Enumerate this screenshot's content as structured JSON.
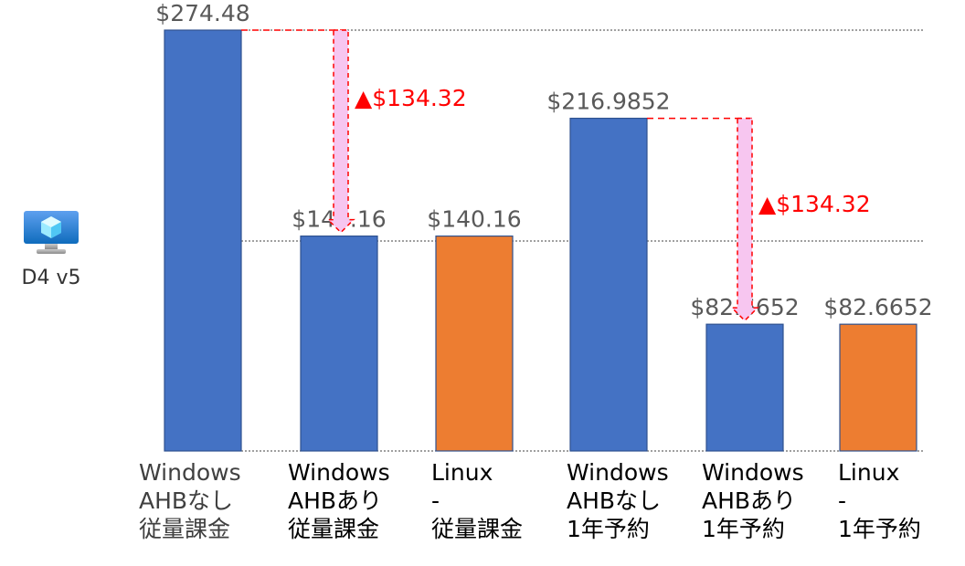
{
  "vm": {
    "label": "D4 v5",
    "icon": "virtual-machine-icon"
  },
  "chart_data": {
    "type": "bar",
    "categories": [
      [
        "Windows",
        "AHBなし",
        "従量課金"
      ],
      [
        "Windows",
        "AHBあり",
        "従量課金"
      ],
      [
        "Linux",
        "-",
        "従量課金"
      ],
      [
        "Windows",
        "AHBなし",
        "1年予約"
      ],
      [
        "Windows",
        "AHBあり",
        "1年予約"
      ],
      [
        "Linux",
        "-",
        "1年予約"
      ]
    ],
    "values": [
      274.48,
      140.16,
      140.16,
      216.9852,
      82.6652,
      82.6652
    ],
    "value_labels": [
      "$274.48",
      "$140.16",
      "$140.16",
      "$216.9852",
      "$82.6652",
      "$82.6652"
    ],
    "bar_colors": [
      "#4472C4",
      "#4472C4",
      "#ED7D31",
      "#4472C4",
      "#4472C4",
      "#ED7D31"
    ],
    "ylim": [
      0,
      274.48
    ],
    "grid": "dotted horizontal lines",
    "annotations": [
      {
        "from": 0,
        "to": 1,
        "text": "▲$134.32"
      },
      {
        "from": 3,
        "to": 4,
        "text": "▲$134.32"
      }
    ],
    "colors": {
      "windows_bar": "#4472C4",
      "linux_bar": "#ED7D31",
      "annotation": "#FF0000",
      "arrow_fill": "#F7C6F0",
      "value_text": "#595959",
      "category_text": "#000000",
      "first_category_text": "#404040"
    }
  }
}
